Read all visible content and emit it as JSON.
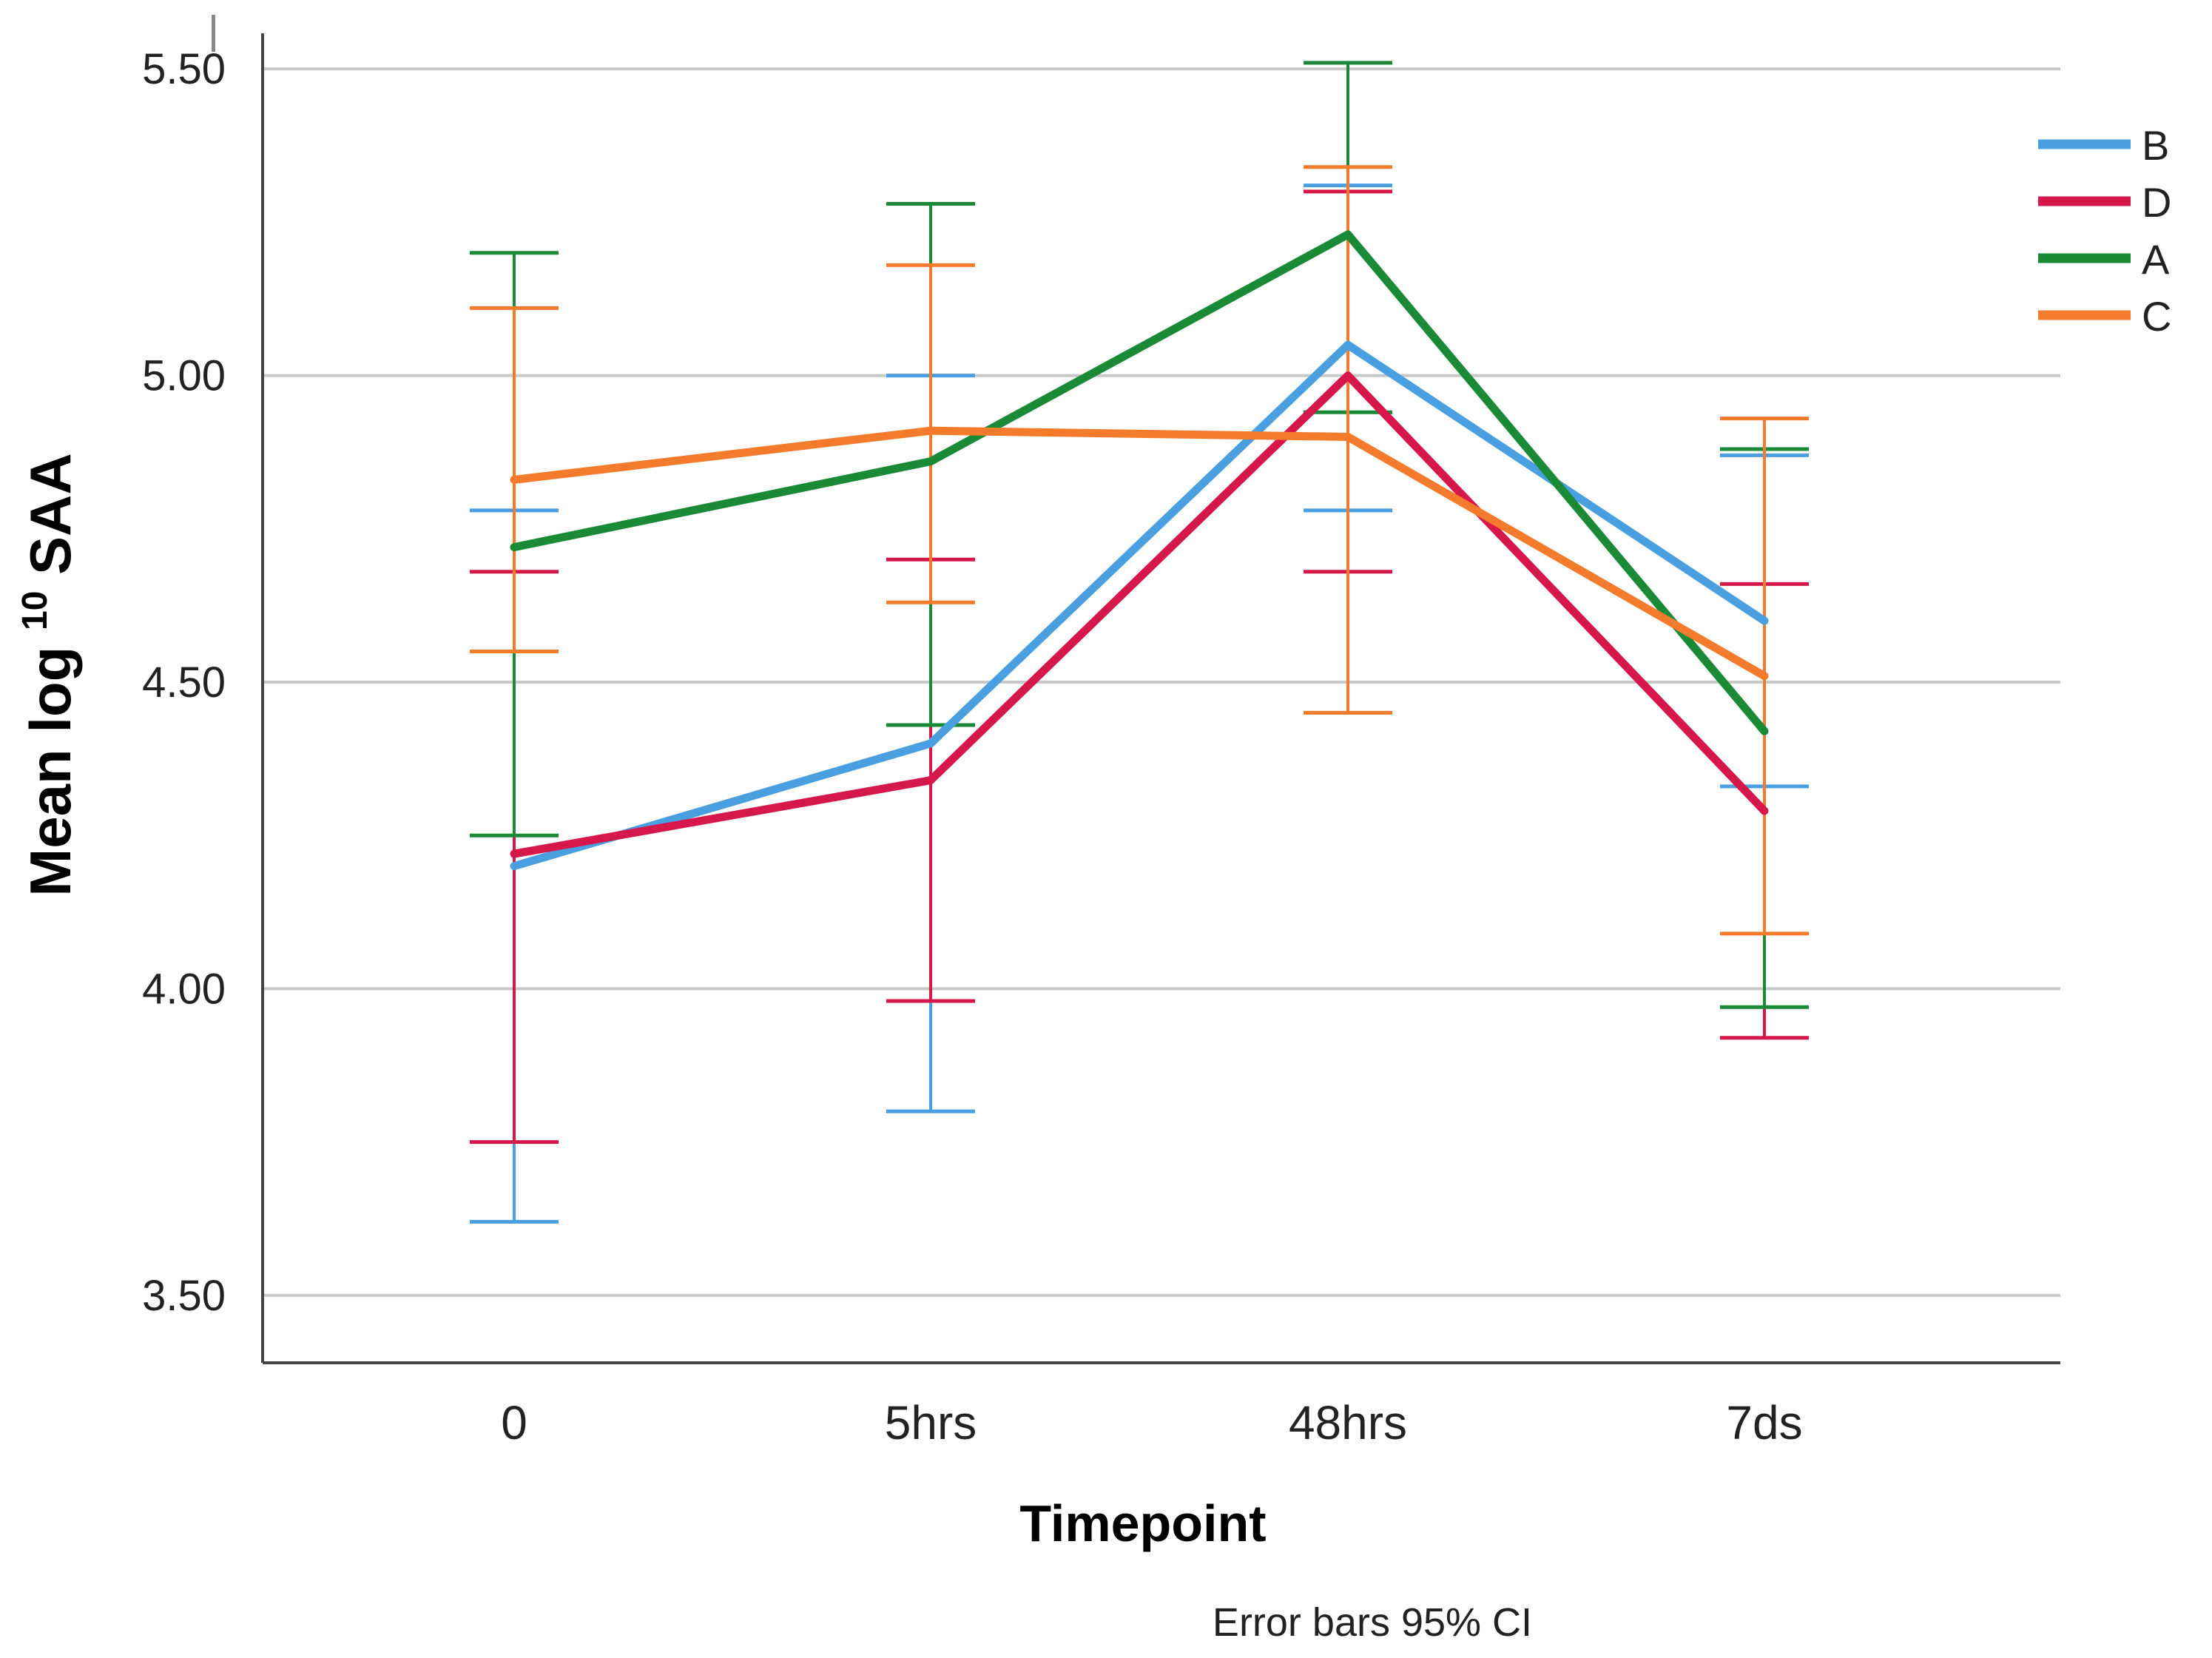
{
  "chart_data": {
    "type": "line",
    "title": "",
    "xlabel": "Timepoint",
    "ylabel": {
      "prefix": "Mean log",
      "superscript": "10",
      "suffix": " SAA"
    },
    "categories": [
      "0",
      "5hrs",
      "48hrs",
      "7ds"
    ],
    "ylim": [
      3.39,
      5.54
    ],
    "yticks": [
      3.5,
      4.0,
      4.5,
      5.0,
      5.5
    ],
    "ytick_labels": [
      "3.50",
      "4.00",
      "4.50",
      "5.00",
      "5.50"
    ],
    "grid": true,
    "legend_position": "top-right",
    "error_bars": "95% CI",
    "footnote": "Error bars 95% CI",
    "series": [
      {
        "name": "B",
        "color": "#4a9fe0",
        "values": [
          4.2,
          4.4,
          5.05,
          4.6
        ],
        "ci_low": [
          3.62,
          3.8,
          4.78,
          4.33
        ],
        "ci_high": [
          4.78,
          5.0,
          5.31,
          4.87
        ]
      },
      {
        "name": "D",
        "color": "#d6174a",
        "values": [
          4.22,
          4.34,
          5.0,
          4.29
        ],
        "ci_low": [
          3.75,
          3.98,
          4.68,
          3.92
        ],
        "ci_high": [
          4.68,
          4.7,
          5.3,
          4.66
        ]
      },
      {
        "name": "A",
        "color": "#1a8a36",
        "values": [
          4.72,
          4.86,
          5.23,
          4.42
        ],
        "ci_low": [
          4.25,
          4.43,
          4.94,
          3.97
        ],
        "ci_high": [
          5.2,
          5.28,
          5.51,
          4.88
        ]
      },
      {
        "name": "C",
        "color": "#f47a2c",
        "values": [
          4.83,
          4.91,
          4.9,
          4.51
        ],
        "ci_low": [
          4.55,
          4.63,
          4.45,
          4.09
        ],
        "ci_high": [
          5.11,
          5.18,
          5.34,
          4.93
        ]
      }
    ]
  }
}
